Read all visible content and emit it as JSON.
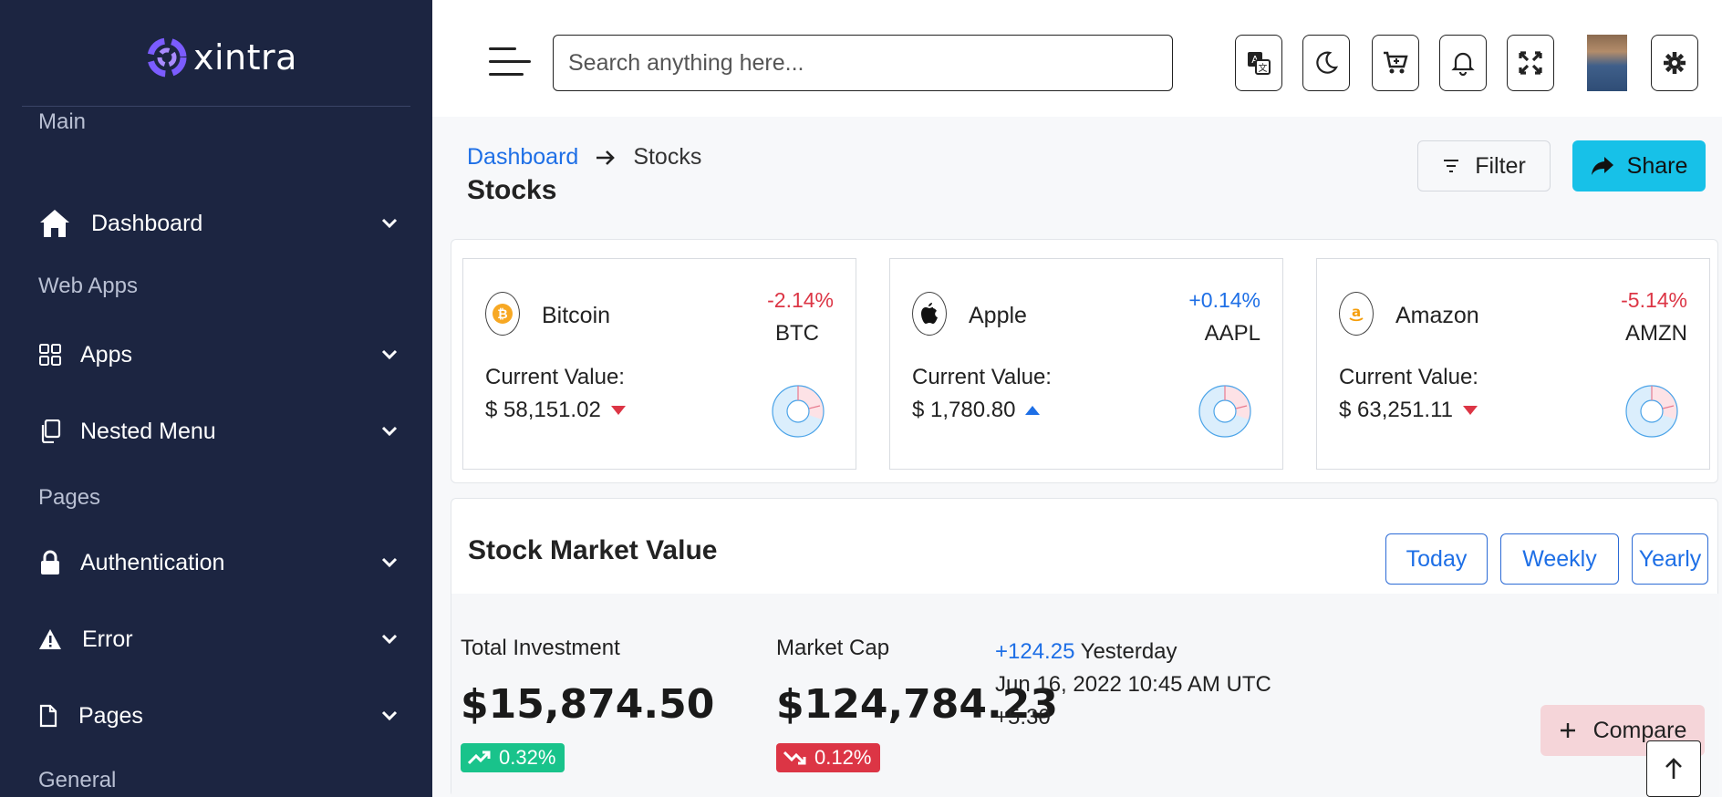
{
  "brand": {
    "name": "xintra",
    "accent": "#7b5cff"
  },
  "sidebar": {
    "categories": {
      "main": "Main",
      "web_apps": "Web Apps",
      "pages": "Pages",
      "general": "General"
    },
    "items": [
      {
        "label": "Dashboard",
        "icon": "home-icon"
      },
      {
        "label": "Apps",
        "icon": "grid-icon"
      },
      {
        "label": "Nested Menu",
        "icon": "copy-icon"
      },
      {
        "label": "Authentication",
        "icon": "lock-icon"
      },
      {
        "label": "Error",
        "icon": "warning-icon"
      },
      {
        "label": "Pages",
        "icon": "file-icon"
      }
    ]
  },
  "header": {
    "search_placeholder": "Search anything here...",
    "icons": [
      "translate-icon",
      "moon-icon",
      "cart-icon",
      "bell-icon",
      "fullscreen-icon",
      "avatar",
      "gear-icon"
    ]
  },
  "breadcrumb": {
    "parent": "Dashboard",
    "current": "Stocks"
  },
  "page_title": "Stocks",
  "actions": {
    "filter": "Filter",
    "share": "Share"
  },
  "stocks": [
    {
      "name": "Bitcoin",
      "change": "-2.14%",
      "symbol": "BTC",
      "label": "Current Value:",
      "value": "$ 58,151.02",
      "direction": "down",
      "color": "#dc3545"
    },
    {
      "name": "Apple",
      "change": "+0.14%",
      "symbol": "AAPL",
      "label": "Current Value:",
      "value": "$ 1,780.80",
      "direction": "up",
      "color": "#1e6fe6"
    },
    {
      "name": "Amazon",
      "change": "-5.14%",
      "symbol": "AMZN",
      "label": "Current Value:",
      "value": "$ 63,251.11",
      "direction": "down",
      "color": "#dc3545"
    }
  ],
  "market": {
    "title": "Stock Market Value",
    "tabs": [
      "Today",
      "Weekly",
      "Yearly"
    ],
    "total_investment": {
      "label": "Total Investment",
      "value": "$15,874.50",
      "badge": "0.32%"
    },
    "market_cap": {
      "label": "Market Cap",
      "value": "$124,784.23",
      "badge": "0.12%"
    },
    "yesterday": {
      "change": "+124.25",
      "label": "Yesterday",
      "date": "Jun 16, 2022 10:45 AM UTC",
      "tz": "+5:30"
    },
    "compare": "Compare"
  }
}
